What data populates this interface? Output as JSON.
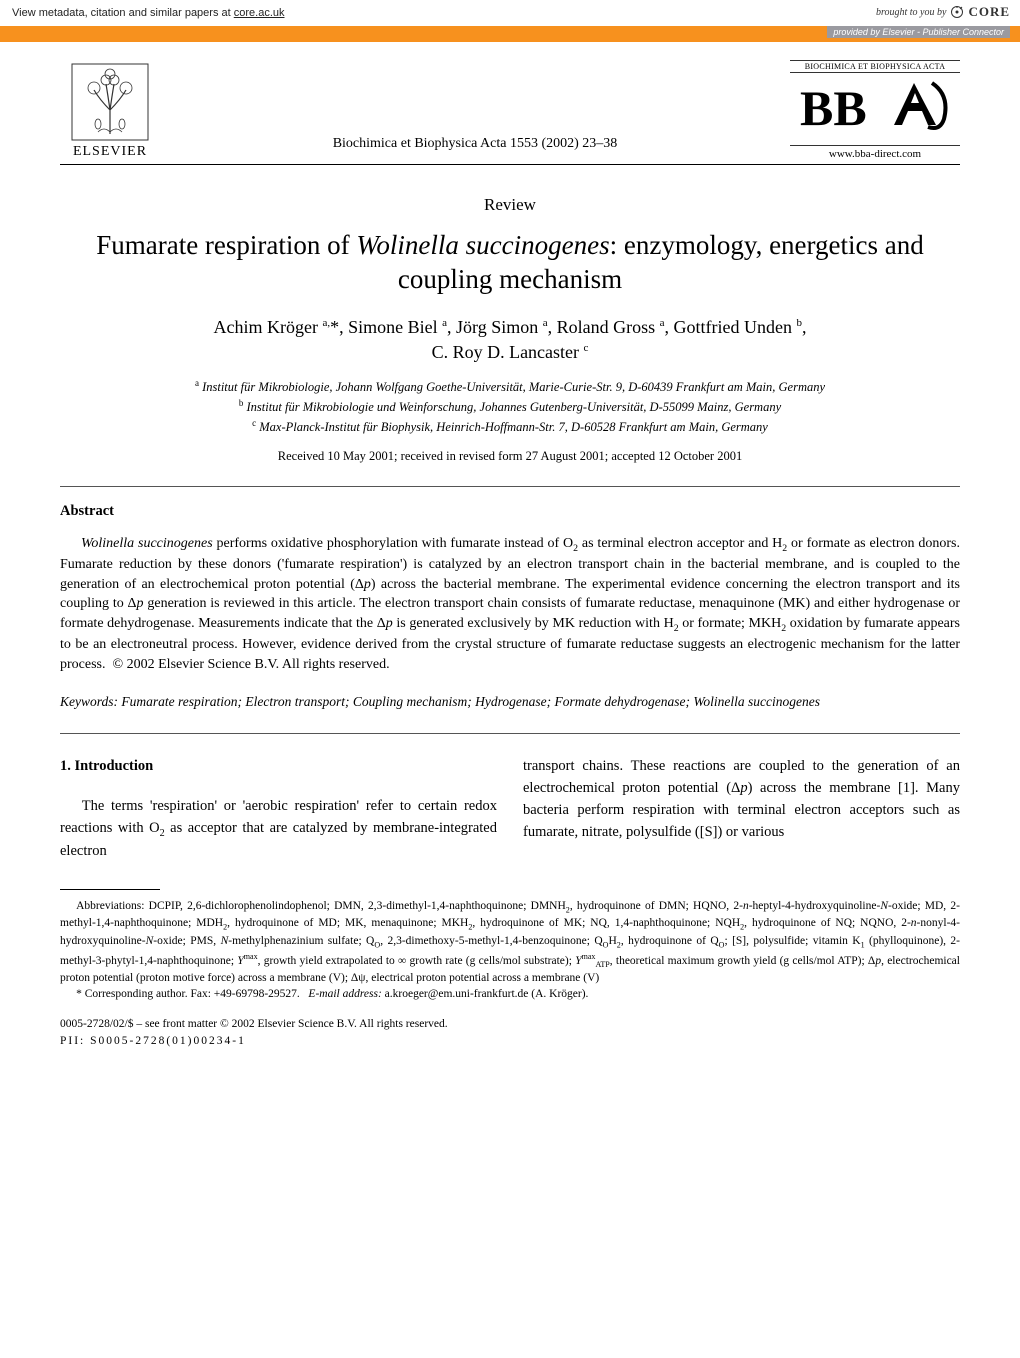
{
  "coreBanner": {
    "leftPrefix": "View metadata, citation and similar papers at ",
    "leftLink": "core.ac.uk",
    "broughtBy": "brought to you by",
    "coreText": "CORE",
    "providedBy": "provided by Elsevier - Publisher Connector"
  },
  "header": {
    "elsevierLabel": "ELSEVIER",
    "journalRef": "Biochimica et Biophysica Acta 1553 (2002) 23–38",
    "bbaTopLine": "BIOCHIMICA ET BIOPHYSICA ACTA",
    "bbaLogoText": "BBA",
    "bbaUrl": "www.bba-direct.com"
  },
  "article": {
    "reviewLabel": "Review",
    "title": "Fumarate respiration of <span class=\"italic\">Wolinella succinogenes</span>: enzymology, energetics and coupling mechanism",
    "authors": "Achim Kröger <sup>a,</sup>*, Simone Biel <sup>a</sup>, Jörg Simon <sup>a</sup>, Roland Gross <sup>a</sup>, Gottfried Unden <sup>b</sup>,<br>C. Roy D. Lancaster <sup>c</sup>",
    "affiliations": "<sup>a</sup> Institut für Mikrobiologie, Johann Wolfgang Goethe-Universität, Marie-Curie-Str. 9, D-60439 Frankfurt am Main, Germany<br><sup>b</sup> Institut für Mikrobiologie und Weinforschung, Johannes Gutenberg-Universität, D-55099 Mainz, Germany<br><sup>c</sup> Max-Planck-Institut für Biophysik, Heinrich-Hoffmann-Str. 7, D-60528 Frankfurt am Main, Germany",
    "dates": "Received 10 May 2001; received in revised form 27 August 2001; accepted 12 October 2001"
  },
  "abstract": {
    "heading": "Abstract",
    "text": "<span class=\"italic\">Wolinella succinogenes</span> performs oxidative phosphorylation with fumarate instead of O<sub>2</sub> as terminal electron acceptor and H<sub>2</sub> or formate as electron donors. Fumarate reduction by these donors ('fumarate respiration') is catalyzed by an electron transport chain in the bacterial membrane, and is coupled to the generation of an electrochemical proton potential (Δ<span class=\"italic\">p</span>) across the bacterial membrane. The experimental evidence concerning the electron transport and its coupling to Δ<span class=\"italic\">p</span> generation is reviewed in this article. The electron transport chain consists of fumarate reductase, menaquinone (MK) and either hydrogenase or formate dehydrogenase. Measurements indicate that the Δ<span class=\"italic\">p</span> is generated exclusively by MK reduction with H<sub>2</sub> or formate; MKH<sub>2</sub> oxidation by fumarate appears to be an electroneutral process. However, evidence derived from the crystal structure of fumarate reductase suggests an electrogenic mechanism for the latter process.&nbsp;&nbsp;© 2002 Elsevier Science B.V. All rights reserved."
  },
  "keywords": {
    "label": "Keywords:",
    "text": "Fumarate respiration; Electron transport; Coupling mechanism; Hydrogenase; Formate dehydrogenase; <span class=\"italic\">Wolinella succinogenes</span>"
  },
  "intro": {
    "heading": "1.  Introduction",
    "col1": "The terms 'respiration' or 'aerobic respiration' refer to certain redox reactions with O<sub>2</sub> as acceptor that are catalyzed by membrane-integrated electron",
    "col2": "transport chains. These reactions are coupled to the generation of an electrochemical proton potential (Δ<span class=\"italic\">p</span>) across the membrane [1]. Many bacteria perform respiration with terminal electron acceptors such as fumarate, nitrate, polysulfide ([S]) or various"
  },
  "footnotes": {
    "abbrev": "Abbreviations: DCPIP, 2,6-dichlorophenolindophenol; DMN, 2,3-dimethyl-1,4-naphthoquinone; DMNH<sub>2</sub>, hydroquinone of DMN; HQNO, 2-<span class=\"italic\">n</span>-heptyl-4-hydroxyquinoline-<span class=\"italic\">N</span>-oxide; MD, 2-methyl-1,4-naphthoquinone; MDH<sub>2</sub>, hydroquinone of MD; MK, menaquinone; MKH<sub>2</sub>, hydroquinone of MK; NQ, 1,4-naphthoquinone; NQH<sub>2</sub>, hydroquinone of NQ; NQNO, 2-<span class=\"italic\">n</span>-nonyl-4-hydroxyquinoline-<span class=\"italic\">N</span>-oxide; PMS, <span class=\"italic\">N</span>-methylphenazinium sulfate; Q<sub>O</sub>, 2,3-dimethoxy-5-methyl-1,4-benzoquinone; Q<sub>O</sub>H<sub>2</sub>, hydroquinone of Q<sub>O</sub>; [S], polysulfide; vitamin K<sub>1</sub> (phylloquinone), 2-methyl-3-phytyl-1,4-naphthoquinone; <span class=\"italic\">Y</span><sup>max</sup>, growth yield extrapolated to ∞ growth rate (g cells/mol substrate); <span class=\"italic\">Y</span><sup>max</sup><sub>ATP</sub>, theoretical maximum growth yield (g cells/mol ATP); Δ<span class=\"italic\">p</span>, electrochemical proton potential (proton motive force) across a membrane (V); Δψ, electrical proton potential across a membrane (V)",
    "corresponding": "* Corresponding author. Fax: +49-69798-29527.&nbsp;&nbsp;&nbsp;<span class=\"italic\">E-mail address:</span> a.kroeger@em.uni-frankfurt.de (A. Kröger)."
  },
  "bottom": {
    "copyright": "0005-2728/02/$ – see front matter © 2002 Elsevier Science B.V. All rights reserved.",
    "pii": "PII: S0005-2728(01)00234-1"
  },
  "colors": {
    "orange": "#f7911e",
    "greyBadge": "#9a9aa0"
  }
}
